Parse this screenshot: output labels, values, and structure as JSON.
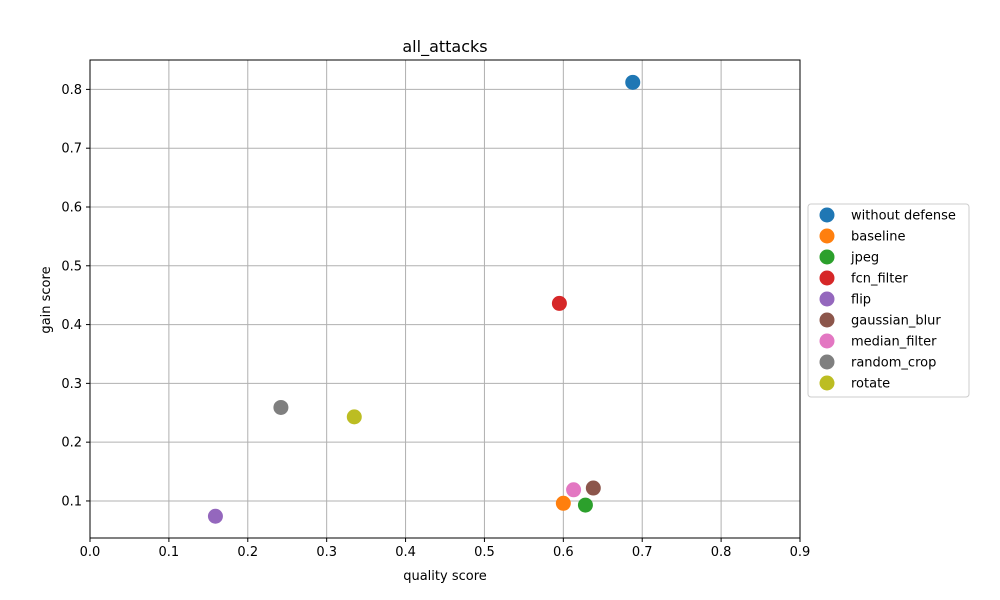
{
  "chart_data": {
    "type": "scatter",
    "title": "all_attacks",
    "xlabel": "quality score",
    "ylabel": "gain score",
    "xlim": [
      0.0,
      0.9
    ],
    "ylim": [
      0.037,
      0.85
    ],
    "xticks": [
      "0.0",
      "0.1",
      "0.2",
      "0.3",
      "0.4",
      "0.5",
      "0.6",
      "0.7",
      "0.8",
      "0.9"
    ],
    "yticks": [
      "0.1",
      "0.2",
      "0.3",
      "0.4",
      "0.5",
      "0.6",
      "0.7",
      "0.8"
    ],
    "grid": true,
    "legend_position": "outside-right",
    "series": [
      {
        "name": "without defense",
        "color": "#1f77b4",
        "x": 0.688,
        "y": 0.812
      },
      {
        "name": "baseline",
        "color": "#ff7f0e",
        "x": 0.6,
        "y": 0.096
      },
      {
        "name": "jpeg",
        "color": "#2ca02c",
        "x": 0.628,
        "y": 0.093
      },
      {
        "name": "fcn_filter",
        "color": "#d62728",
        "x": 0.595,
        "y": 0.436
      },
      {
        "name": "flip",
        "color": "#9467bd",
        "x": 0.159,
        "y": 0.074
      },
      {
        "name": "gaussian_blur",
        "color": "#8c564b",
        "x": 0.638,
        "y": 0.122
      },
      {
        "name": "median_filter",
        "color": "#e377c2",
        "x": 0.613,
        "y": 0.119
      },
      {
        "name": "random_crop",
        "color": "#7f7f7f",
        "x": 0.242,
        "y": 0.259
      },
      {
        "name": "rotate",
        "color": "#bcbd22",
        "x": 0.335,
        "y": 0.243
      }
    ]
  }
}
